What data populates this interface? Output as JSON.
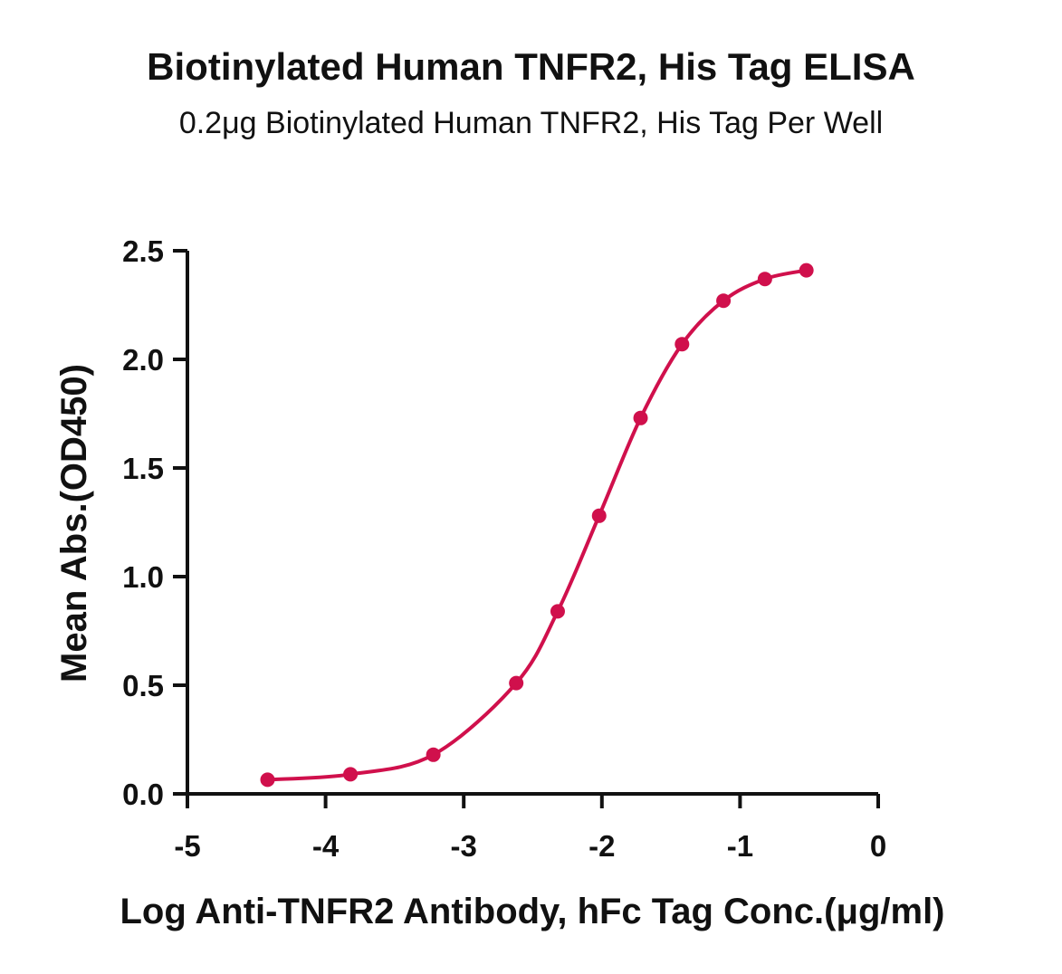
{
  "chart_data": {
    "type": "line",
    "title": "Biotinylated Human TNFR2, His Tag ELISA",
    "subtitle": "0.2μg Biotinylated Human TNFR2, His Tag Per Well",
    "xlabel": "Log Anti-TNFR2 Antibody, hFc Tag Conc.(μg/ml)",
    "ylabel": "Mean Abs.(OD450)",
    "xlim": [
      -5,
      0
    ],
    "ylim": [
      0.0,
      2.5
    ],
    "xticks": [
      "-5",
      "-4",
      "-3",
      "-2",
      "-1",
      "0"
    ],
    "yticks": [
      "0.0",
      "0.5",
      "1.0",
      "1.5",
      "2.0",
      "2.5"
    ],
    "grid": false,
    "series": [
      {
        "color": "#d0104c",
        "x": [
          -4.42,
          -3.82,
          -3.22,
          -2.62,
          -2.32,
          -2.02,
          -1.72,
          -1.42,
          -1.12,
          -0.82,
          -0.52
        ],
        "y": [
          0.065,
          0.09,
          0.18,
          0.51,
          0.84,
          1.28,
          1.73,
          2.07,
          2.27,
          2.37,
          2.41
        ]
      }
    ]
  }
}
